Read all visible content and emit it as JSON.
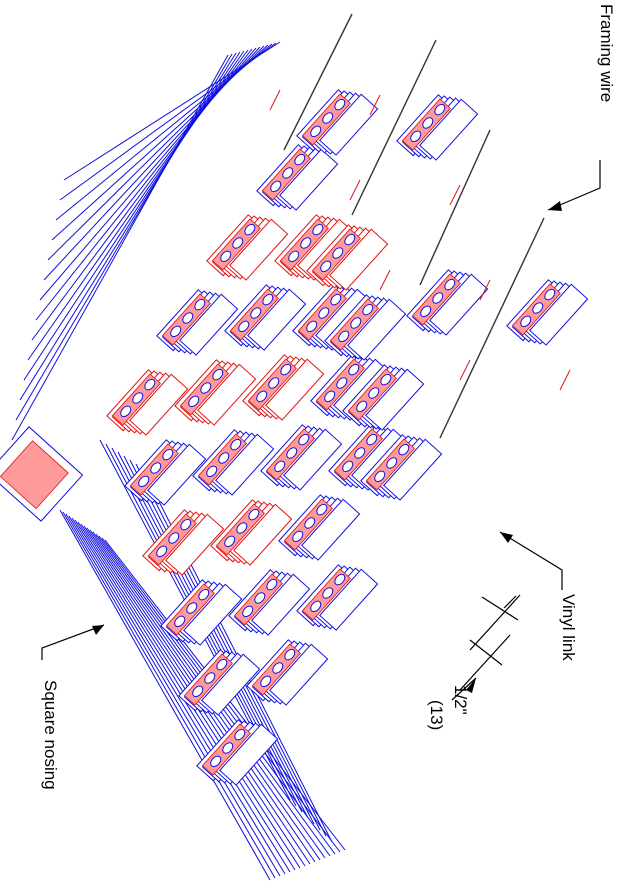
{
  "labels": {
    "framing_wire": "Framing wire",
    "vinyl_link": "Vinyl link",
    "dimension_imperial": "1/2\"",
    "dimension_metric": "(13)",
    "square_nosing": "Square nosing"
  },
  "colors": {
    "outline_blue": "#1010e0",
    "highlight_red": "#e01010",
    "leader": "#000000"
  }
}
